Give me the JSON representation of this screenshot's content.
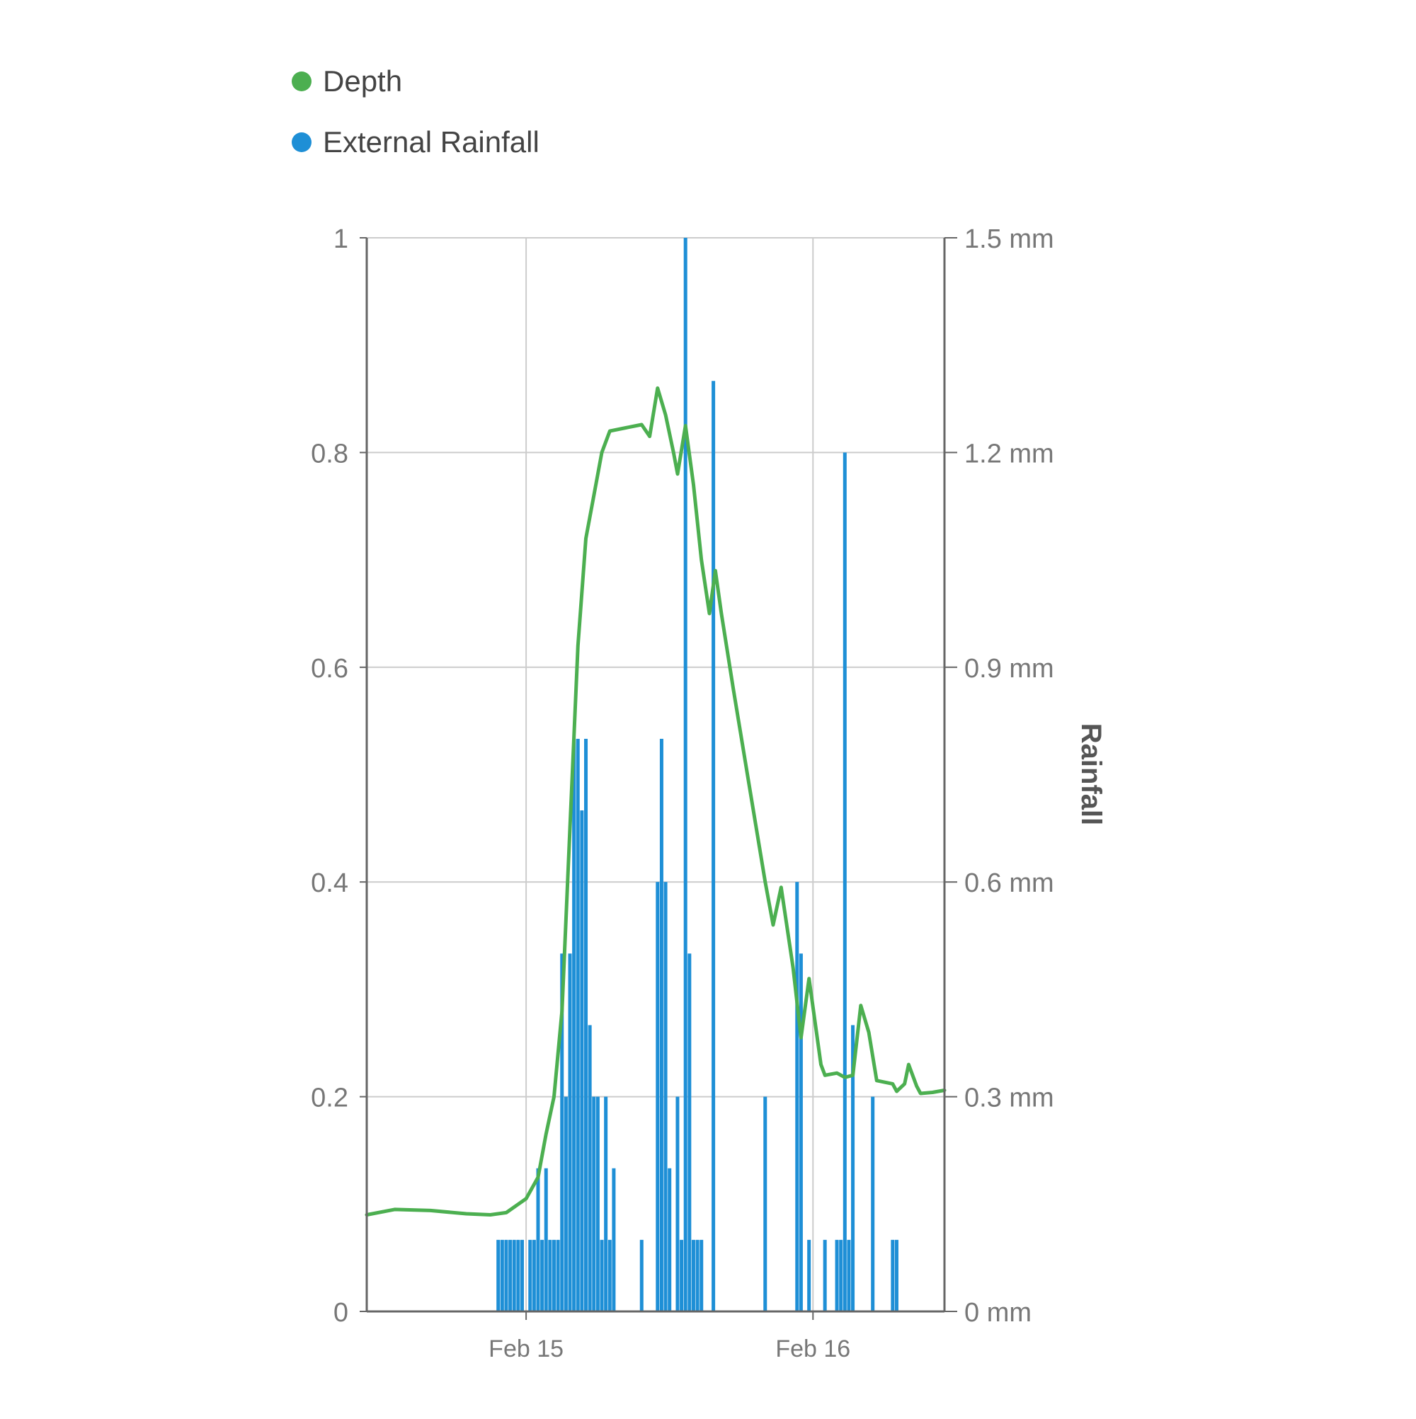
{
  "colors": {
    "depth": "#4caf50",
    "rainfall": "#1e8fd6",
    "grid": "#cccccc",
    "axis": "#666666",
    "tick_text": "#777777"
  },
  "chart_data": {
    "type": "bar",
    "title": "",
    "legend": {
      "placement": "top-left",
      "entries": [
        "Depth",
        "External Rainfall"
      ]
    },
    "x_axis": {
      "type": "date",
      "range": [
        "2021-02-14T10:40",
        "2021-02-16T11:00"
      ],
      "ticks": [
        {
          "value": "2021-02-15T00:00",
          "label": "Feb 15"
        },
        {
          "value": "2021-02-16T00:00",
          "label": "Feb 16"
        }
      ],
      "grid": true
    },
    "y_axis_left": {
      "label": "",
      "range": [
        0,
        1
      ],
      "ticks": [
        {
          "value": 0,
          "label": "0"
        },
        {
          "value": 0.2,
          "label": "0.2"
        },
        {
          "value": 0.4,
          "label": "0.4"
        },
        {
          "value": 0.6,
          "label": "0.6"
        },
        {
          "value": 0.8,
          "label": "0.8"
        },
        {
          "value": 1,
          "label": "1"
        }
      ],
      "grid": true
    },
    "y_axis_right": {
      "label": "Rainfall",
      "unit": "mm",
      "range": [
        0,
        1.5
      ],
      "ticks": [
        {
          "value": 0,
          "label": "0 mm"
        },
        {
          "value": 0.3,
          "label": "0.3 mm"
        },
        {
          "value": 0.6,
          "label": "0.6 mm"
        },
        {
          "value": 0.9,
          "label": "0.9 mm"
        },
        {
          "value": 1.2,
          "label": "1.2 mm"
        },
        {
          "value": 1.5,
          "label": "1.5 mm"
        }
      ]
    },
    "series": [
      {
        "name": "Depth",
        "type": "line",
        "axis": "left",
        "points": [
          [
            "2021-02-14T10:40",
            0.09
          ],
          [
            "2021-02-14T13:00",
            0.095
          ],
          [
            "2021-02-14T16:00",
            0.094
          ],
          [
            "2021-02-14T19:00",
            0.091
          ],
          [
            "2021-02-14T21:00",
            0.09
          ],
          [
            "2021-02-14T22:20",
            0.092
          ],
          [
            "2021-02-15T00:00",
            0.105
          ],
          [
            "2021-02-15T01:00",
            0.125
          ],
          [
            "2021-02-15T01:40",
            0.165
          ],
          [
            "2021-02-15T02:20",
            0.2
          ],
          [
            "2021-02-15T03:00",
            0.28
          ],
          [
            "2021-02-15T03:40",
            0.45
          ],
          [
            "2021-02-15T04:20",
            0.62
          ],
          [
            "2021-02-15T05:00",
            0.72
          ],
          [
            "2021-02-15T05:40",
            0.76
          ],
          [
            "2021-02-15T06:20",
            0.8
          ],
          [
            "2021-02-15T07:00",
            0.82
          ],
          [
            "2021-02-15T08:20",
            0.823
          ],
          [
            "2021-02-15T09:40",
            0.826
          ],
          [
            "2021-02-15T10:20",
            0.815
          ],
          [
            "2021-02-15T11:00",
            0.86
          ],
          [
            "2021-02-15T11:40",
            0.835
          ],
          [
            "2021-02-15T12:20",
            0.8
          ],
          [
            "2021-02-15T12:40",
            0.78
          ],
          [
            "2021-02-15T13:20",
            0.825
          ],
          [
            "2021-02-15T14:00",
            0.77
          ],
          [
            "2021-02-15T14:40",
            0.7
          ],
          [
            "2021-02-15T15:20",
            0.65
          ],
          [
            "2021-02-15T15:50",
            0.69
          ],
          [
            "2021-02-15T16:20",
            0.65
          ],
          [
            "2021-02-15T17:20",
            0.58
          ],
          [
            "2021-02-15T18:40",
            0.49
          ],
          [
            "2021-02-15T20:00",
            0.4
          ],
          [
            "2021-02-15T20:40",
            0.36
          ],
          [
            "2021-02-15T21:20",
            0.395
          ],
          [
            "2021-02-15T22:20",
            0.32
          ],
          [
            "2021-02-15T23:00",
            0.255
          ],
          [
            "2021-02-15T23:40",
            0.31
          ],
          [
            "2021-02-16T00:40",
            0.23
          ],
          [
            "2021-02-16T01:00",
            0.22
          ],
          [
            "2021-02-16T02:00",
            0.222
          ],
          [
            "2021-02-16T02:40",
            0.218
          ],
          [
            "2021-02-16T03:20",
            0.22
          ],
          [
            "2021-02-16T04:00",
            0.285
          ],
          [
            "2021-02-16T04:40",
            0.26
          ],
          [
            "2021-02-16T05:20",
            0.215
          ],
          [
            "2021-02-16T06:40",
            0.212
          ],
          [
            "2021-02-16T07:00",
            0.205
          ],
          [
            "2021-02-16T07:40",
            0.212
          ],
          [
            "2021-02-16T08:00",
            0.23
          ],
          [
            "2021-02-16T08:40",
            0.21
          ],
          [
            "2021-02-16T09:00",
            0.203
          ],
          [
            "2021-02-16T10:00",
            0.204
          ],
          [
            "2021-02-16T11:00",
            0.206
          ]
        ]
      },
      {
        "name": "External Rainfall",
        "type": "bar",
        "axis": "right",
        "unit": "mm",
        "points": [
          [
            "2021-02-14T21:40",
            0.1
          ],
          [
            "2021-02-14T22:00",
            0.1
          ],
          [
            "2021-02-14T22:20",
            0.1
          ],
          [
            "2021-02-14T22:40",
            0.1
          ],
          [
            "2021-02-14T23:00",
            0.1
          ],
          [
            "2021-02-14T23:20",
            0.1
          ],
          [
            "2021-02-14T23:40",
            0.1
          ],
          [
            "2021-02-15T00:20",
            0.1
          ],
          [
            "2021-02-15T00:40",
            0.1
          ],
          [
            "2021-02-15T01:00",
            0.2
          ],
          [
            "2021-02-15T01:20",
            0.1
          ],
          [
            "2021-02-15T01:40",
            0.2
          ],
          [
            "2021-02-15T02:00",
            0.1
          ],
          [
            "2021-02-15T02:20",
            0.1
          ],
          [
            "2021-02-15T02:40",
            0.1
          ],
          [
            "2021-02-15T03:00",
            0.5
          ],
          [
            "2021-02-15T03:20",
            0.3
          ],
          [
            "2021-02-15T03:40",
            0.5
          ],
          [
            "2021-02-15T04:00",
            0.8
          ],
          [
            "2021-02-15T04:20",
            0.8
          ],
          [
            "2021-02-15T04:40",
            0.7
          ],
          [
            "2021-02-15T05:00",
            0.8
          ],
          [
            "2021-02-15T05:20",
            0.4
          ],
          [
            "2021-02-15T05:40",
            0.3
          ],
          [
            "2021-02-15T06:00",
            0.3
          ],
          [
            "2021-02-15T06:20",
            0.1
          ],
          [
            "2021-02-15T06:40",
            0.3
          ],
          [
            "2021-02-15T07:00",
            0.1
          ],
          [
            "2021-02-15T07:20",
            0.2
          ],
          [
            "2021-02-15T09:40",
            0.1
          ],
          [
            "2021-02-15T11:00",
            0.6
          ],
          [
            "2021-02-15T11:20",
            0.8
          ],
          [
            "2021-02-15T11:40",
            0.6
          ],
          [
            "2021-02-15T12:00",
            0.2
          ],
          [
            "2021-02-15T12:40",
            0.3
          ],
          [
            "2021-02-15T13:00",
            0.1
          ],
          [
            "2021-02-15T13:20",
            1.5
          ],
          [
            "2021-02-15T13:40",
            0.5
          ],
          [
            "2021-02-15T14:00",
            0.1
          ],
          [
            "2021-02-15T14:20",
            0.1
          ],
          [
            "2021-02-15T14:40",
            0.1
          ],
          [
            "2021-02-15T15:40",
            1.3
          ],
          [
            "2021-02-15T20:00",
            0.3
          ],
          [
            "2021-02-15T22:40",
            0.6
          ],
          [
            "2021-02-15T23:00",
            0.5
          ],
          [
            "2021-02-15T23:40",
            0.1
          ],
          [
            "2021-02-16T01:00",
            0.1
          ],
          [
            "2021-02-16T02:00",
            0.1
          ],
          [
            "2021-02-16T02:20",
            0.1
          ],
          [
            "2021-02-16T02:40",
            1.2
          ],
          [
            "2021-02-16T03:00",
            0.1
          ],
          [
            "2021-02-16T03:20",
            0.4
          ],
          [
            "2021-02-16T05:00",
            0.3
          ],
          [
            "2021-02-16T06:40",
            0.1
          ],
          [
            "2021-02-16T07:00",
            0.1
          ]
        ]
      }
    ]
  }
}
